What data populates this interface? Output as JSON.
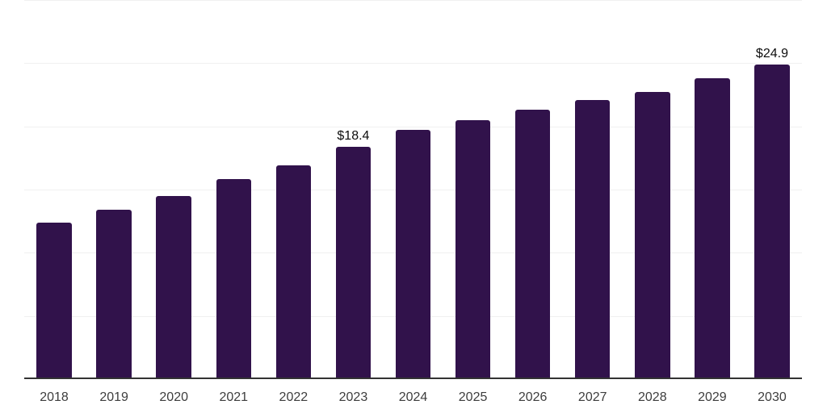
{
  "chart_data": {
    "type": "bar",
    "title": "",
    "xlabel": "",
    "ylabel": "",
    "categories": [
      "2018",
      "2019",
      "2020",
      "2021",
      "2022",
      "2023",
      "2024",
      "2025",
      "2026",
      "2027",
      "2028",
      "2029",
      "2030"
    ],
    "values": [
      12.4,
      13.4,
      14.5,
      15.8,
      16.9,
      18.4,
      19.7,
      20.5,
      21.3,
      22.1,
      22.7,
      23.8,
      24.9
    ],
    "value_labels": {
      "2023": "$18.4",
      "2030": "$24.9"
    },
    "ylim": [
      0,
      30
    ],
    "grid_step": 5,
    "grid": true,
    "legend_position": "none",
    "colors": {
      "bar": "#31124B",
      "axis_line": "#333333",
      "gridline": "#F0F0F0",
      "tick_label": "#3D3D3D",
      "value_label": "#0D0D0D",
      "background": "#FFFFFF"
    }
  }
}
